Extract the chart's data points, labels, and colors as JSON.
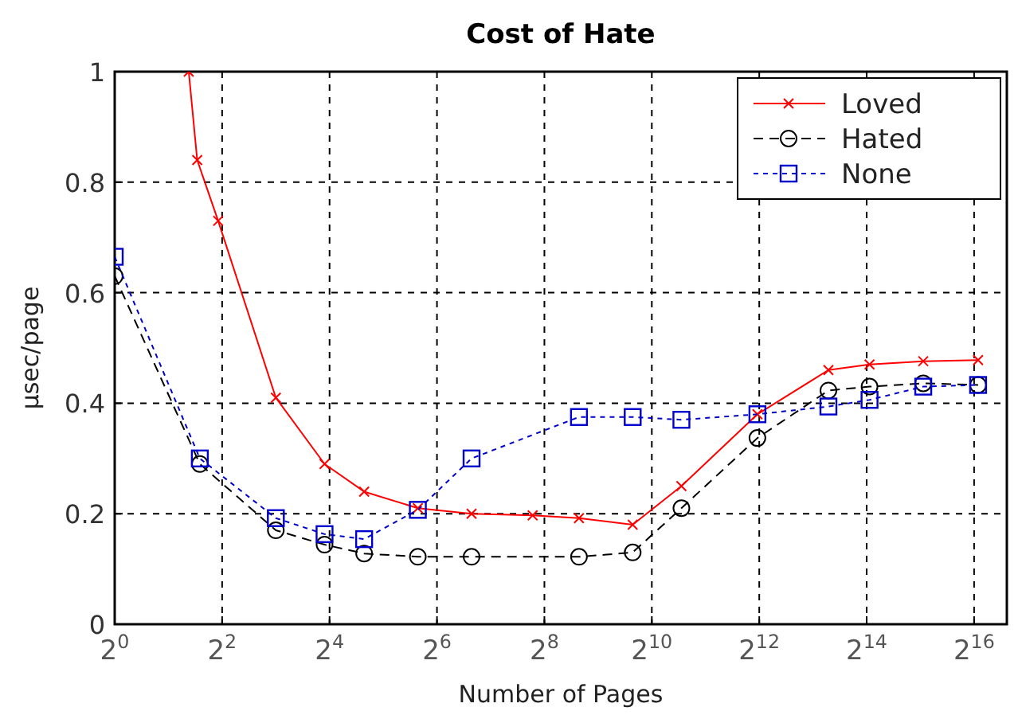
{
  "chart_data": {
    "type": "line",
    "title": "Cost of Hate",
    "xlabel": "Number of Pages",
    "ylabel": "µsec/page",
    "log": "x",
    "xlim": [
      1,
      100000
    ],
    "xticks": [
      {
        "value": 1,
        "label": "2$^{0}$"
      },
      {
        "value": 4,
        "label": "2$^{2}$"
      },
      {
        "value": 16,
        "label": "2$^{4}$"
      },
      {
        "value": 64,
        "label": "2$^{6}$"
      },
      {
        "value": 256,
        "label": "2$^{8}$"
      },
      {
        "value": 1024,
        "label": "2$^{10}$"
      },
      {
        "value": 4096,
        "label": "2$^{12}$"
      },
      {
        "value": 16384,
        "label": "2$^{14}$"
      },
      {
        "value": 65536,
        "label": "2$^{16}$"
      }
    ],
    "ylim": [
      0,
      1
    ],
    "yticks": [
      0,
      0.2,
      0.4,
      0.6,
      0.8,
      1
    ],
    "grid": true,
    "legend": "top right",
    "series": [
      {
        "name": "Loved",
        "color": "#ff0000",
        "marker": "cross",
        "line_style": "solid",
        "x": [
          2.6,
          2.9,
          3.8,
          8,
          15,
          25,
          50,
          100,
          220,
          400,
          800,
          1500,
          4000,
          10000,
          17000,
          34000,
          69000
        ],
        "values": [
          1.0,
          0.84,
          0.73,
          0.41,
          0.29,
          0.24,
          0.21,
          0.2,
          0.197,
          0.192,
          0.18,
          0.25,
          0.38,
          0.46,
          0.47,
          0.476,
          0.478
        ]
      },
      {
        "name": "Hated",
        "color": "#000000",
        "marker": "circle",
        "line_style": "dashed",
        "x": [
          1,
          3,
          8,
          15,
          25,
          50,
          100,
          400,
          800,
          1500,
          4000,
          10000,
          17000,
          34000,
          69000
        ],
        "values": [
          0.63,
          0.29,
          0.17,
          0.144,
          0.128,
          0.122,
          0.122,
          0.122,
          0.13,
          0.21,
          0.337,
          0.423,
          0.43,
          0.436,
          0.433
        ]
      },
      {
        "name": "None",
        "color": "#0000cc",
        "marker": "square",
        "line_style": "dotted",
        "x": [
          1,
          3,
          8,
          15,
          25,
          50,
          100,
          400,
          800,
          1500,
          4000,
          10000,
          17000,
          34000,
          69000
        ],
        "values": [
          0.665,
          0.3,
          0.192,
          0.163,
          0.154,
          0.207,
          0.3,
          0.375,
          0.375,
          0.37,
          0.38,
          0.394,
          0.406,
          0.43,
          0.433
        ]
      }
    ]
  }
}
